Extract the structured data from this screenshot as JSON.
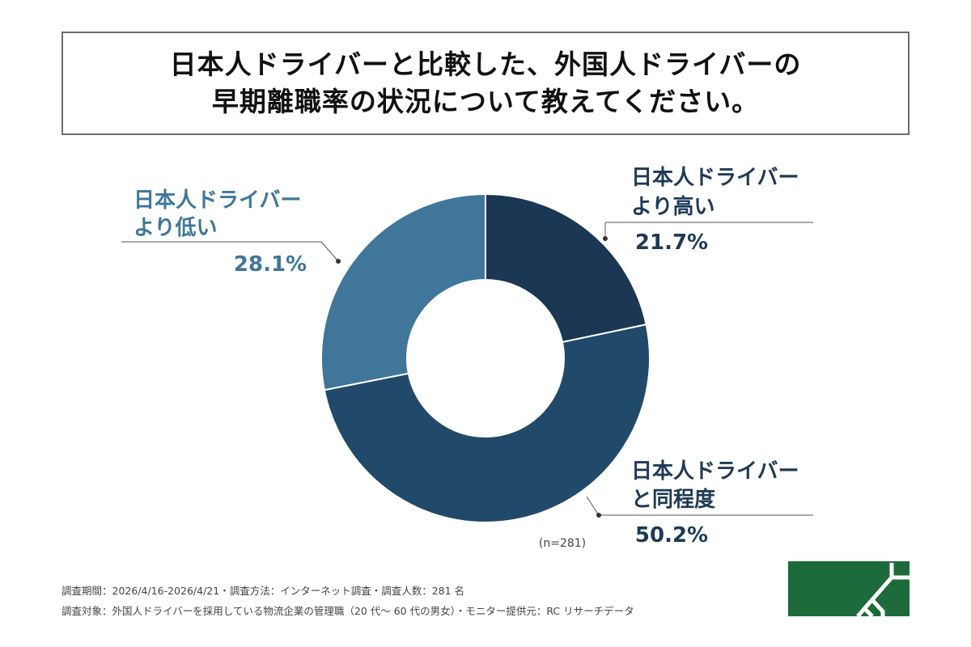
{
  "title": {
    "line1": "日本人ドライバーと比較した、外国人ドライバーの",
    "line2": "早期離職率の状況について教えてください。"
  },
  "chart_data": {
    "type": "pie",
    "donut": true,
    "categories": [
      "日本人ドライバーより高い",
      "日本人ドライバーと同程度",
      "日本人ドライバーより低い"
    ],
    "values": [
      21.7,
      50.2,
      28.1
    ],
    "value_labels": [
      "21.7%",
      "50.2%",
      "28.1%"
    ],
    "label_lines": [
      [
        "日本人ドライバー",
        "より高い"
      ],
      [
        "日本人ドライバー",
        "と同程度"
      ],
      [
        "日本人ドライバー",
        "より低い"
      ]
    ],
    "colors": [
      "#1b3753",
      "#21496a",
      "#3f7699"
    ],
    "label_colors": [
      "#1d3a57",
      "#1d3a57",
      "#3f7699"
    ],
    "sample_size": "(n=281)"
  },
  "footer": {
    "line1": "調査期間：2026/4/16-2026/4/21・調査方法：インターネット調査・調査人数：281 名",
    "line2": "調査対象：外国人ドライバーを採用している物流企業の管理職（20 代～ 60 代の男女）・モニター提供元：RC リサーチデータ"
  },
  "logo": {
    "color": "#1d6b3a"
  }
}
